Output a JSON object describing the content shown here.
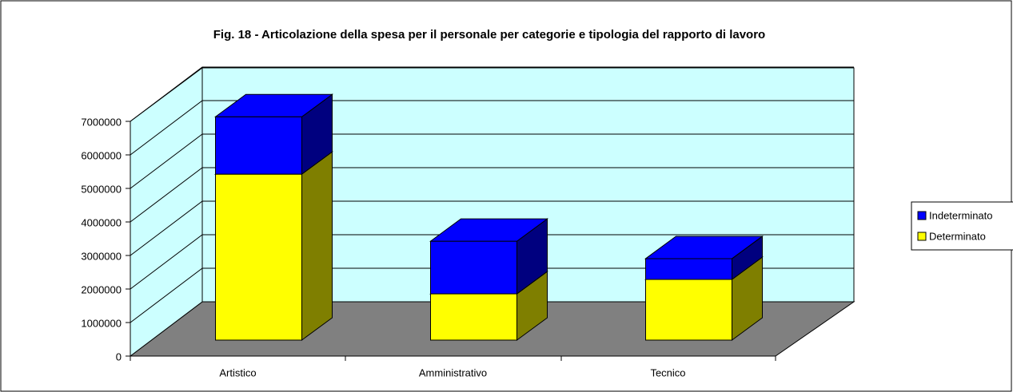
{
  "chart_data": {
    "type": "bar3d_stacked",
    "title": "Fig. 18 - Articolazione della spesa per il personale per categorie e tipologia del rapporto di lavoro",
    "categories": [
      "Artistico",
      "Amministrativo",
      "Tecnico"
    ],
    "series": [
      {
        "name": "Determinato",
        "color": "#ffff00",
        "values": [
          4950000,
          1380000,
          1810000
        ]
      },
      {
        "name": "Indeterminato",
        "color": "#0000ff",
        "values": [
          1710000,
          1570000,
          620000
        ]
      }
    ],
    "ylim": [
      0,
      7000000
    ],
    "yticks": [
      0,
      1000000,
      2000000,
      3000000,
      4000000,
      5000000,
      6000000,
      7000000
    ],
    "grid": true,
    "legend": "right"
  }
}
